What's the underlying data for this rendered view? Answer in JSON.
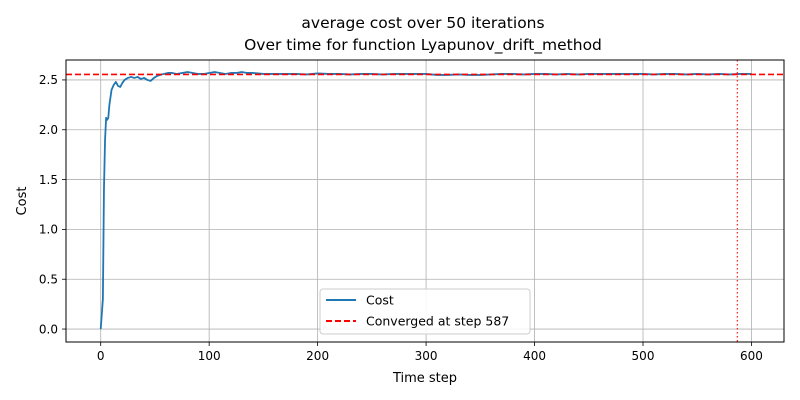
{
  "chart_data": {
    "type": "line",
    "title": "average cost over 50 iterations",
    "subtitle": "Over time for function Lyapunov_drift_method",
    "xlabel": "Time step",
    "ylabel": "Cost",
    "xlim": [
      -32,
      630
    ],
    "ylim": [
      -0.13,
      2.7
    ],
    "xticks": [
      0,
      100,
      200,
      300,
      400,
      500,
      600
    ],
    "yticks": [
      0.0,
      0.5,
      1.0,
      1.5,
      2.0,
      2.5
    ],
    "xtick_labels": [
      "0",
      "100",
      "200",
      "300",
      "400",
      "500",
      "600"
    ],
    "ytick_labels": [
      "0.0",
      "0.5",
      "1.0",
      "1.5",
      "2.0",
      "2.5"
    ],
    "grid": true,
    "legend_position": "lower-center",
    "series": [
      {
        "name": "Cost",
        "color": "#1f77b4",
        "style": "solid",
        "x": [
          0,
          2,
          3,
          4,
          5,
          6,
          7,
          8,
          10,
          12,
          14,
          16,
          18,
          20,
          22,
          25,
          28,
          31,
          34,
          37,
          40,
          43,
          46,
          49,
          52,
          55,
          58,
          62,
          66,
          70,
          75,
          80,
          85,
          90,
          95,
          100,
          105,
          110,
          115,
          120,
          125,
          130,
          135,
          140,
          150,
          160,
          170,
          180,
          190,
          200,
          210,
          220,
          230,
          240,
          250,
          260,
          270,
          280,
          290,
          300,
          310,
          320,
          330,
          340,
          350,
          360,
          370,
          380,
          390,
          400,
          410,
          420,
          430,
          440,
          450,
          460,
          470,
          480,
          490,
          500,
          510,
          520,
          530,
          540,
          550,
          560,
          570,
          580,
          590,
          600
        ],
        "values": [
          0.0,
          0.3,
          1.4,
          1.9,
          2.12,
          2.1,
          2.12,
          2.25,
          2.4,
          2.45,
          2.48,
          2.44,
          2.43,
          2.47,
          2.5,
          2.52,
          2.53,
          2.52,
          2.53,
          2.51,
          2.52,
          2.5,
          2.49,
          2.52,
          2.54,
          2.55,
          2.56,
          2.57,
          2.57,
          2.56,
          2.57,
          2.58,
          2.57,
          2.56,
          2.56,
          2.57,
          2.58,
          2.57,
          2.56,
          2.57,
          2.57,
          2.58,
          2.57,
          2.57,
          2.56,
          2.56,
          2.56,
          2.56,
          2.555,
          2.565,
          2.56,
          2.56,
          2.555,
          2.56,
          2.56,
          2.555,
          2.56,
          2.56,
          2.56,
          2.56,
          2.55,
          2.55,
          2.555,
          2.55,
          2.55,
          2.555,
          2.56,
          2.56,
          2.555,
          2.56,
          2.56,
          2.555,
          2.56,
          2.555,
          2.56,
          2.56,
          2.56,
          2.56,
          2.56,
          2.56,
          2.555,
          2.56,
          2.56,
          2.555,
          2.56,
          2.555,
          2.56,
          2.555,
          2.56,
          2.56
        ]
      },
      {
        "name": "Converged at step 587",
        "color": "#ff0000",
        "style": "dashed",
        "y": 2.555
      }
    ],
    "annotations": [
      {
        "type": "vline",
        "x": 587,
        "color": "#ff0000",
        "style": "dotted"
      }
    ]
  }
}
